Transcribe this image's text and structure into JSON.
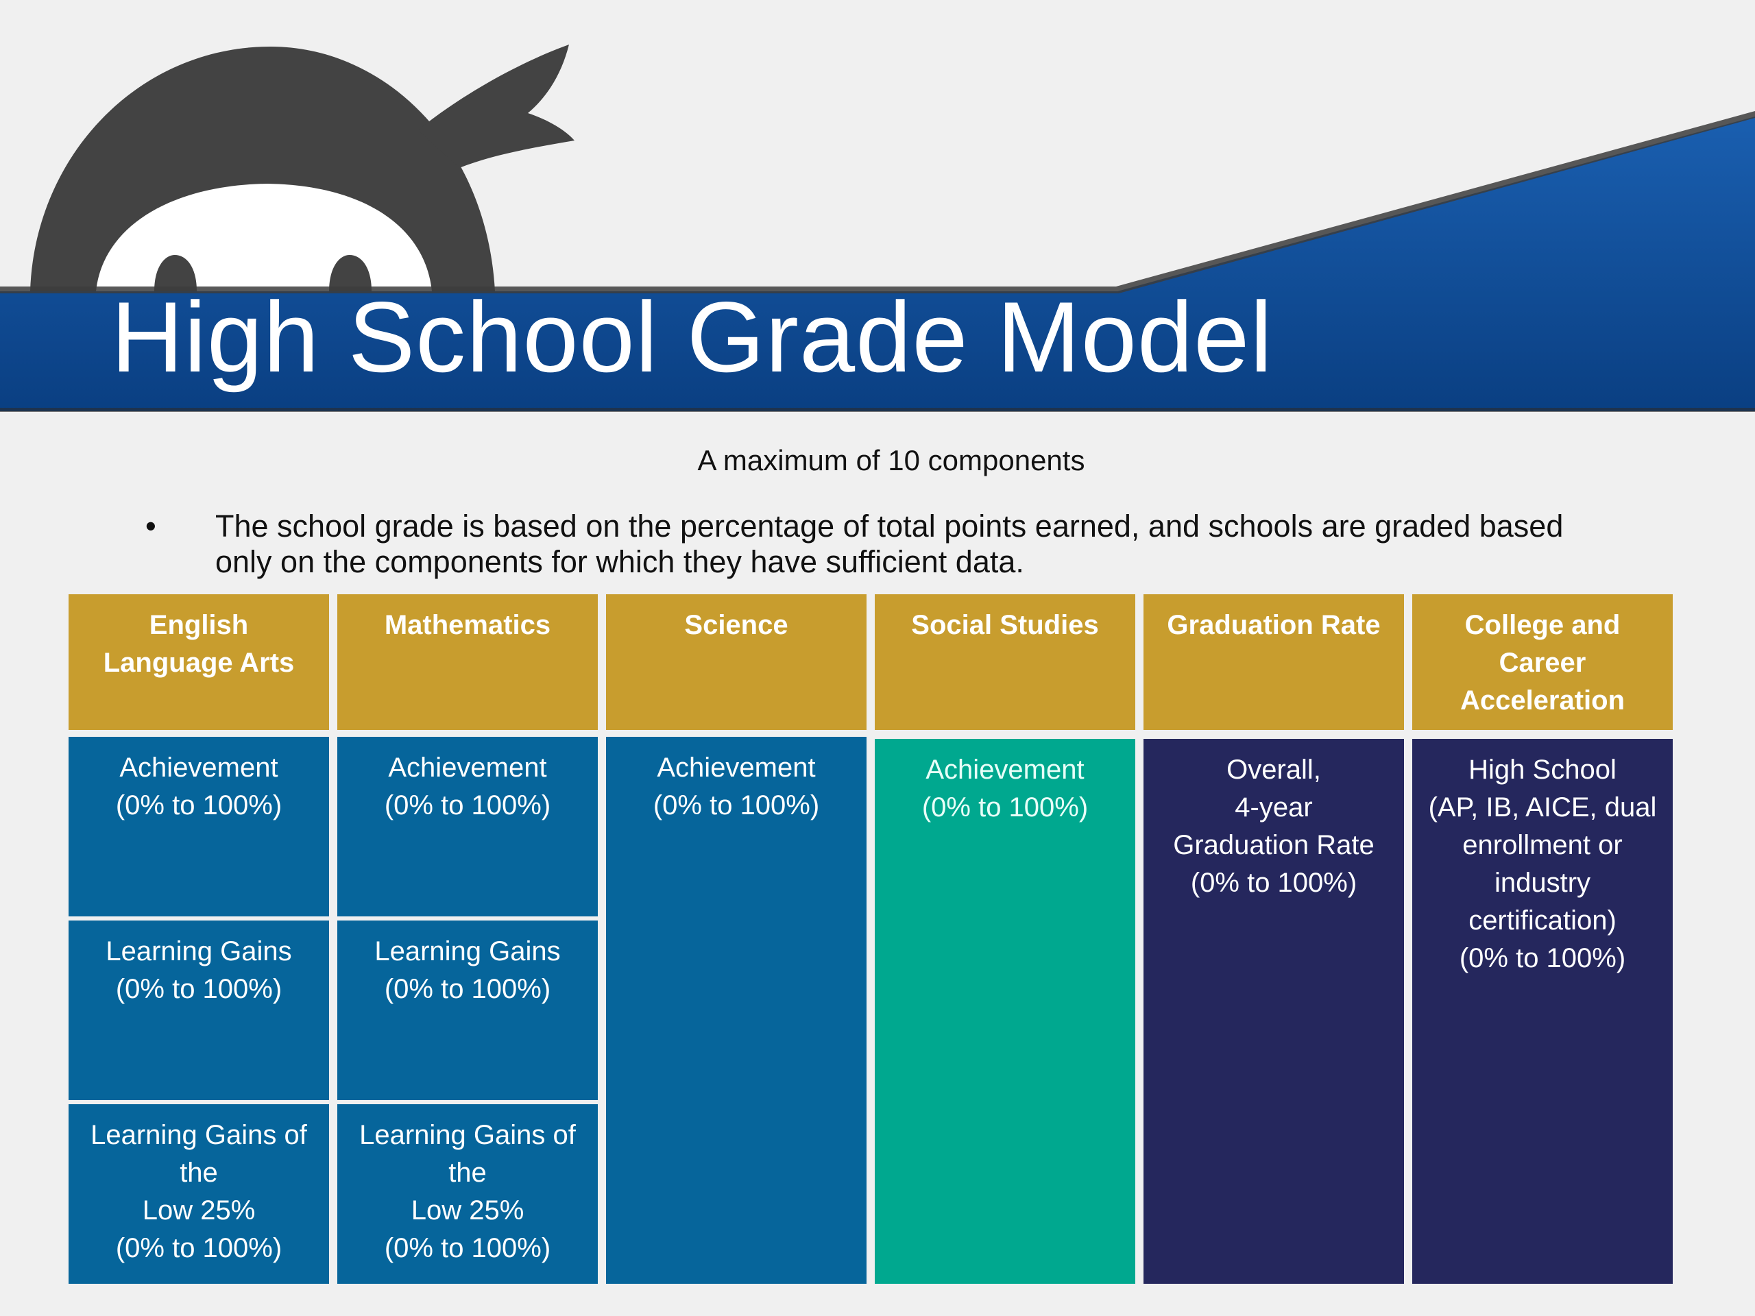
{
  "slide": {
    "title": "High School Grade Model",
    "subtitle": "A maximum of 10 components",
    "bullet": "The school grade is based on the percentage of total points earned, and schools are graded based only on the components for which they have sufficient data."
  },
  "colors": {
    "header_gold": "#c89d2e",
    "cell_blue": "#06659b",
    "cell_teal": "#00a88f",
    "cell_navy": "#25275d",
    "banner_blue": "#0d4f9a",
    "background": "#f0f0f0",
    "mascot_gray": "#434343"
  },
  "icons": {
    "mascot": "ninja-mascot-icon",
    "bullet": "bullet-dot-icon"
  },
  "table": {
    "headers": [
      [
        "English",
        "Language Arts"
      ],
      [
        "Mathematics"
      ],
      [
        "Science"
      ],
      [
        "Social Studies"
      ],
      [
        "Graduation Rate"
      ],
      [
        "College and",
        "Career",
        "Acceleration"
      ]
    ],
    "ela": [
      [
        "Achievement",
        "(0% to 100%)"
      ],
      [
        "Learning Gains",
        "(0% to 100%)"
      ],
      [
        "Learning Gains of",
        "the",
        "Low 25%",
        "(0% to 100%)"
      ]
    ],
    "math": [
      [
        "Achievement",
        "(0% to 100%)"
      ],
      [
        "Learning Gains",
        "(0% to 100%)"
      ],
      [
        "Learning Gains of",
        "the",
        "Low 25%",
        "(0% to 100%)"
      ]
    ],
    "science": [
      "Achievement",
      "(0% to 100%)"
    ],
    "social_studies": [
      "Achievement",
      "(0% to 100%)"
    ],
    "graduation": [
      "Overall,",
      "4-year",
      "Graduation Rate",
      "(0% to 100%)"
    ],
    "acceleration": [
      "High School",
      "(AP, IB, AICE, dual",
      "enrollment or",
      "industry",
      "certification)",
      "(0% to 100%)"
    ]
  }
}
